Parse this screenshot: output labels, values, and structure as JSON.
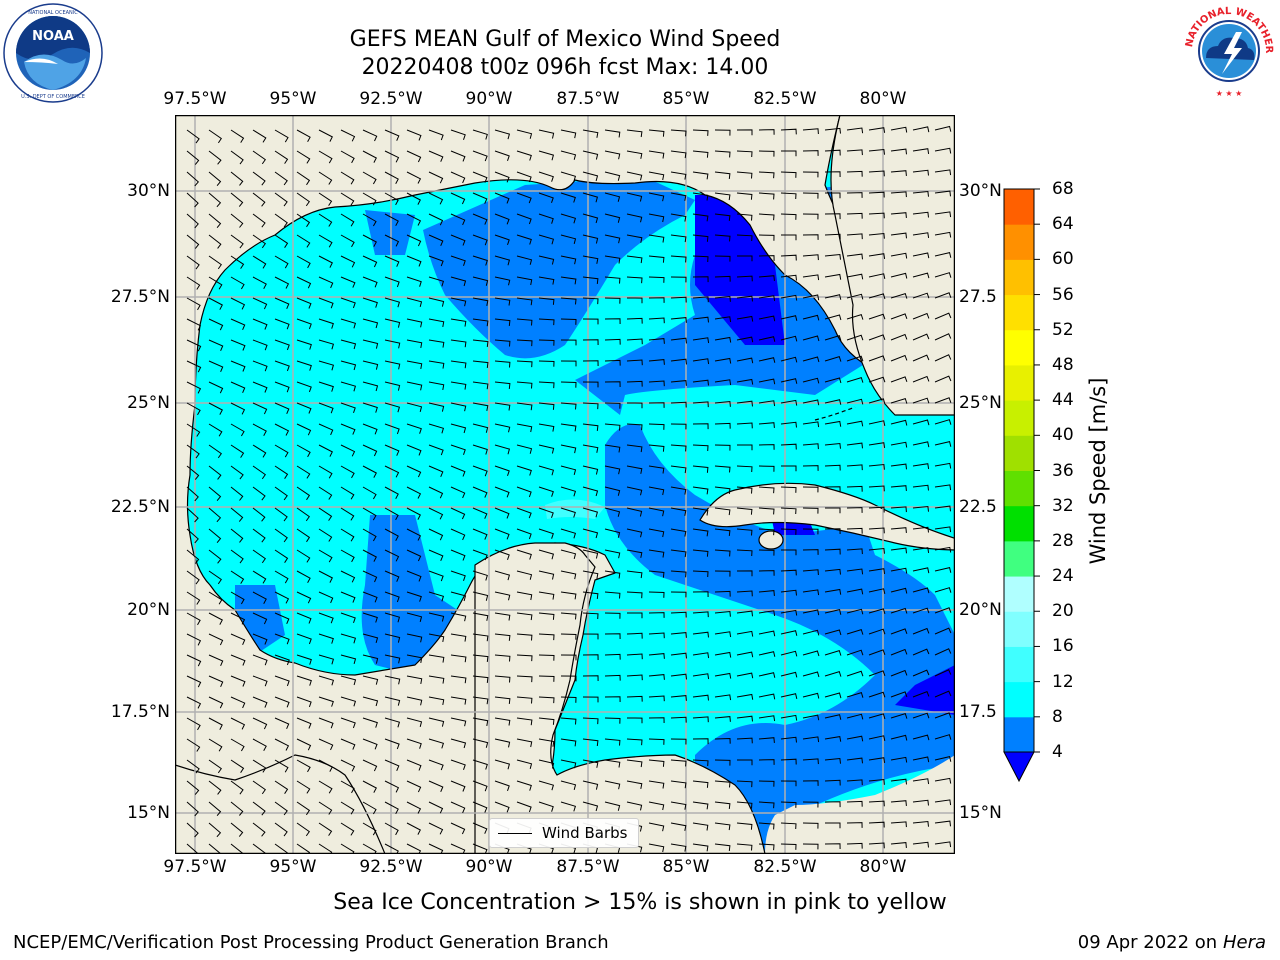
{
  "title": {
    "line1": "GEFS MEAN Gulf of Mexico Wind Speed",
    "line2": "20220408 t00z 096h fcst   Max: 14.00"
  },
  "logos": {
    "left": {
      "name": "NOAA",
      "ring_text": "NATIONAL OCEANIC AND ATMOSPHERIC ADMINISTRATION · U.S. DEPARTMENT OF COMMERCE"
    },
    "right": {
      "ring_text": "NATIONAL WEATHER SERVICE"
    }
  },
  "lon_ticks": [
    "97.5°W",
    "95°W",
    "92.5°W",
    "90°W",
    "87.5°W",
    "85°W",
    "82.5°W",
    "80°W"
  ],
  "lat_ticks": [
    "30°N",
    "27.5°N",
    "25°N",
    "22.5°N",
    "20°N",
    "17.5°N",
    "15°N"
  ],
  "lat_ticks_right": [
    "30°N",
    "27.5",
    "25°N",
    "22.5",
    "20°N",
    "17.5",
    "15°N"
  ],
  "colorbar": {
    "label": "Wind Speed [m/s]",
    "ticks": [
      "4",
      "8",
      "12",
      "16",
      "20",
      "24",
      "28",
      "32",
      "36",
      "40",
      "44",
      "48",
      "52",
      "56",
      "60",
      "64",
      "68"
    ],
    "colors": [
      "#0080ff",
      "#00ffff",
      "#40ffff",
      "#80ffff",
      "#b0ffff",
      "#40ff80",
      "#00e000",
      "#60e000",
      "#a0e000",
      "#c8f000",
      "#e8f000",
      "#ffff00",
      "#ffe000",
      "#ffc000",
      "#ff9000",
      "#ff6000",
      "#ff3000",
      "#ff0000"
    ],
    "under_color": "#0000ff"
  },
  "colors": {
    "land": "#efedde",
    "grid": "#b0b0b0",
    "band_4_8": "#0080ff",
    "band_8_12": "#00ffff",
    "band_lt_4": "#0000ff"
  },
  "legend": {
    "label": "Wind Barbs"
  },
  "note": "Sea Ice Concentration > 15% is shown in pink to yellow",
  "footer": {
    "left": "NCEP/EMC/Verification Post Processing Product Generation Branch",
    "date": "09 Apr 2022 on ",
    "host": "Hera"
  }
}
